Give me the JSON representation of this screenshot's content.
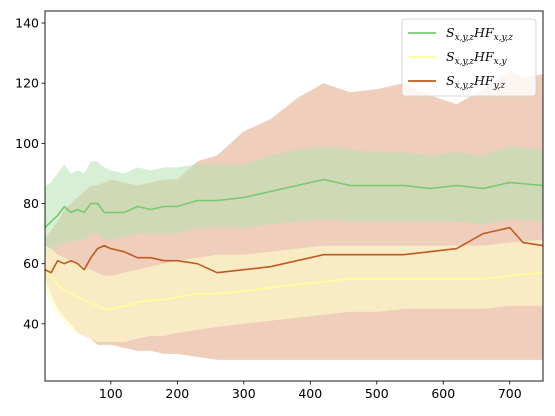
{
  "chart_data": {
    "type": "line",
    "title": "",
    "xlabel": "",
    "ylabel": "",
    "xlim": [
      1,
      750
    ],
    "ylim": [
      21,
      144
    ],
    "x_ticks": [
      100,
      200,
      300,
      400,
      500,
      600,
      700
    ],
    "y_ticks": [
      40,
      60,
      80,
      100,
      120,
      140
    ],
    "legend_position": "top-right",
    "grid": false,
    "series": [
      {
        "name": "S_{x,y,z}HF_{x,y,z}",
        "legend_main": "S",
        "legend_sub1": "x,y,z",
        "legend_mid": "HF",
        "legend_sub2": "x,y,z",
        "color": "#77c96e",
        "band_color": "#b7e2b0",
        "x": [
          1,
          10,
          20,
          30,
          40,
          50,
          60,
          70,
          80,
          90,
          100,
          120,
          140,
          160,
          180,
          200,
          230,
          260,
          300,
          340,
          380,
          420,
          460,
          500,
          540,
          580,
          620,
          660,
          700,
          750
        ],
        "mean": [
          72,
          74,
          76,
          79,
          77,
          78,
          77,
          80,
          80,
          77,
          77,
          77,
          79,
          78,
          79,
          79,
          81,
          81,
          82,
          84,
          86,
          88,
          86,
          86,
          86,
          85,
          86,
          85,
          87,
          86
        ],
        "lower": [
          62,
          65,
          66,
          67,
          67,
          68,
          68,
          70,
          70,
          68,
          68,
          69,
          70,
          70,
          70,
          70,
          72,
          72,
          72,
          73,
          74,
          75,
          74,
          74,
          74,
          74,
          74,
          73,
          75,
          74
        ],
        "upper": [
          86,
          87,
          90,
          93,
          90,
          91,
          90,
          94,
          94,
          92,
          91,
          90,
          92,
          91,
          92,
          92,
          93,
          93,
          93,
          96,
          98,
          99,
          98,
          97,
          97,
          96,
          97,
          96,
          99,
          98
        ]
      },
      {
        "name": "S_{x,y,z}HF_{x,y}",
        "legend_main": "S",
        "legend_sub1": "x,y,z",
        "legend_mid": "HF",
        "legend_sub2": "x,y",
        "color": "#ffff99",
        "band_color": "#ffffcc",
        "x": [
          1,
          10,
          20,
          30,
          40,
          50,
          60,
          70,
          80,
          90,
          100,
          120,
          140,
          160,
          180,
          200,
          230,
          260,
          300,
          340,
          380,
          420,
          460,
          500,
          540,
          580,
          620,
          660,
          700,
          750
        ],
        "mean": [
          58,
          56,
          53,
          51,
          50,
          49,
          48,
          47,
          46,
          45,
          45,
          46,
          47,
          48,
          48,
          49,
          50,
          50,
          51,
          52,
          53,
          54,
          55,
          55,
          55,
          55,
          55,
          55,
          56,
          57
        ],
        "lower": [
          52,
          47,
          43,
          40,
          38,
          37,
          36,
          35,
          34,
          34,
          34,
          34,
          35,
          36,
          36,
          37,
          38,
          39,
          40,
          41,
          42,
          43,
          44,
          44,
          45,
          45,
          45,
          45,
          46,
          46
        ],
        "upper": [
          66,
          65,
          63,
          62,
          61,
          60,
          59,
          58,
          57,
          56,
          56,
          57,
          58,
          59,
          60,
          61,
          62,
          63,
          63,
          64,
          65,
          66,
          66,
          66,
          66,
          66,
          66,
          66,
          67,
          68
        ]
      },
      {
        "name": "S_{x,y,z}HF_{y,z}",
        "legend_main": "S",
        "legend_sub1": "x,y,z",
        "legend_mid": "HF",
        "legend_sub2": "y,z",
        "color": "#c15a1e",
        "band_color": "#e2a785",
        "x": [
          1,
          10,
          20,
          30,
          40,
          50,
          60,
          70,
          80,
          90,
          100,
          120,
          140,
          160,
          180,
          200,
          230,
          260,
          300,
          340,
          380,
          420,
          460,
          500,
          540,
          580,
          620,
          660,
          700,
          720,
          750
        ],
        "mean": [
          58,
          57,
          61,
          60,
          61,
          60,
          58,
          62,
          65,
          66,
          65,
          64,
          62,
          62,
          61,
          61,
          60,
          57,
          58,
          59,
          61,
          63,
          63,
          63,
          63,
          64,
          65,
          70,
          72,
          67,
          66
        ],
        "lower": [
          55,
          50,
          45,
          42,
          40,
          37,
          36,
          35,
          33,
          33,
          33,
          32,
          31,
          31,
          30,
          30,
          29,
          28,
          28,
          28,
          28,
          28,
          28,
          28,
          28,
          28,
          28,
          28,
          28,
          28,
          28
        ],
        "upper": [
          68,
          71,
          74,
          78,
          80,
          82,
          84,
          86,
          86,
          87,
          88,
          87,
          86,
          87,
          88,
          88,
          94,
          96,
          104,
          108,
          115,
          120,
          117,
          118,
          120,
          116,
          113,
          118,
          124,
          122,
          123
        ]
      }
    ]
  }
}
